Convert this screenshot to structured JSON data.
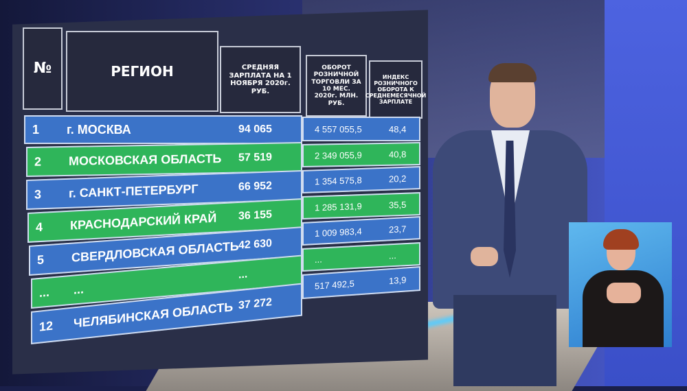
{
  "table": {
    "headers": {
      "num": "№",
      "region": "РЕГИОН",
      "salary": "СРЕДНЯЯ ЗАРПЛАТА НА 1 НОЯБРЯ 2020г. РУБ.",
      "turnover": "ОБОРОТ РОЗНИЧНОЙ ТОРГОВЛИ ЗА 10 МЕС. 2020г. МЛН. РУБ.",
      "index": "ИНДЕКС РОЗНИЧНОГО ОБОРОТА К СРЕДНЕМЕСЯЧНОЙ ЗАРПЛАТЕ"
    },
    "rows": [
      {
        "num": "1",
        "region": "г. МОСКВА",
        "salary": "94 065",
        "turnover": "4 557 055,5",
        "index": "48,4"
      },
      {
        "num": "2",
        "region": "МОСКОВСКАЯ ОБЛАСТЬ",
        "salary": "57 519",
        "turnover": "2 349 055,9",
        "index": "40,8"
      },
      {
        "num": "3",
        "region": "г. САНКТ-ПЕТЕРБУРГ",
        "salary": "66 952",
        "turnover": "1 354 575,8",
        "index": "20,2"
      },
      {
        "num": "4",
        "region": "КРАСНОДАРСКИЙ КРАЙ",
        "salary": "36 155",
        "turnover": "1 285 131,9",
        "index": "35,5"
      },
      {
        "num": "5",
        "region": "СВЕРДЛОВСКАЯ ОБЛАСТЬ",
        "salary": "42 630",
        "turnover": "1 009 983,4",
        "index": "23,7"
      },
      {
        "num": "...",
        "region": "...",
        "salary": "...",
        "turnover": "...",
        "index": "..."
      },
      {
        "num": "12",
        "region": "ЧЕЛЯБИНСКАЯ ОБЛАСТЬ",
        "salary": "37 272",
        "turnover": "517 492,5",
        "index": "13,9"
      }
    ]
  },
  "colors": {
    "blue_row": "#3b73c8",
    "green_row": "#2fb55a",
    "header": "#26293d"
  }
}
